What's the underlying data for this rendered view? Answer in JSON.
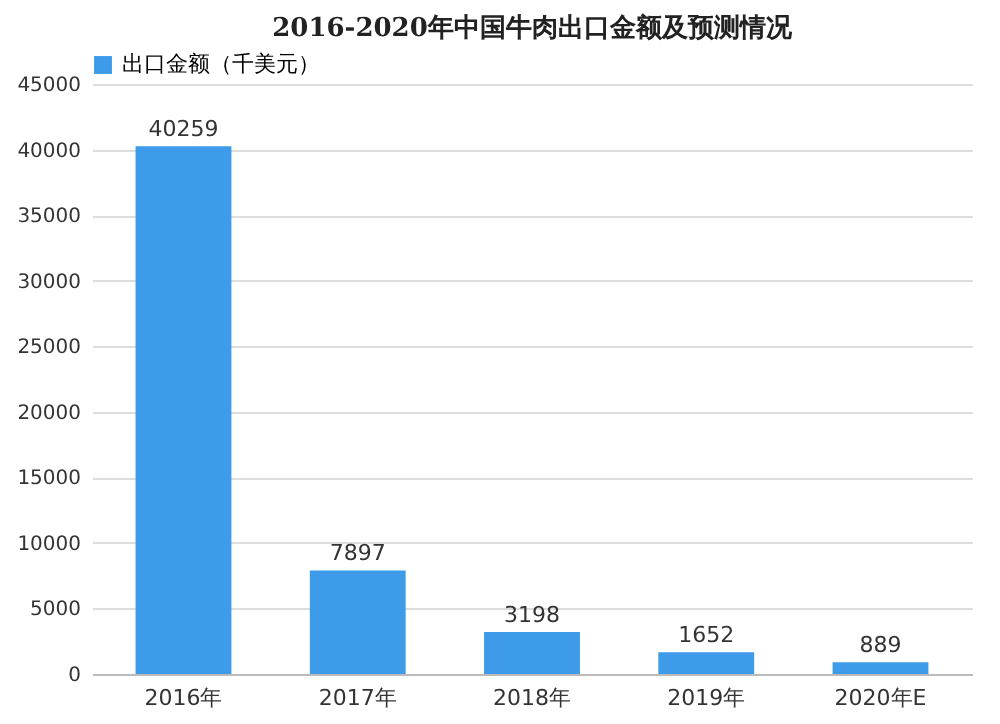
{
  "chart_data": {
    "type": "bar",
    "title": "2016-2020年中国牛肉出口金额及预测情况",
    "categories": [
      "2016年",
      "2017年",
      "2018年",
      "2019年",
      "2020年E"
    ],
    "series": [
      {
        "name": "出口金额（千美元）",
        "color": "#3d9be9",
        "values": [
          40259,
          7897,
          3198,
          1652,
          889
        ]
      }
    ],
    "ylim": [
      0,
      45000
    ],
    "yticks": [
      0,
      5000,
      10000,
      15000,
      20000,
      25000,
      30000,
      35000,
      40000,
      45000
    ],
    "grid": "y",
    "legend": "top",
    "data_labels": true
  }
}
